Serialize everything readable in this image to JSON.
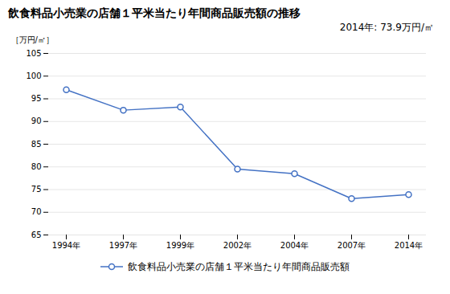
{
  "chart_data": {
    "type": "line",
    "title": "飲食料品小売業の店舗１平米当たり年間商品販売額の推移",
    "annotation": "2014年: 73.9万円/㎡",
    "ylabel": "［万円/㎡］",
    "categories": [
      "1994年",
      "1997年",
      "1999年",
      "2002年",
      "2004年",
      "2007年",
      "2014年"
    ],
    "series": [
      {
        "name": "飲食料品小売業の店舗１平米当たり年間商品販売額",
        "color": "#4472C4",
        "marker": "circle",
        "values": [
          97.0,
          92.5,
          93.2,
          79.5,
          78.5,
          73.0,
          73.9
        ]
      }
    ],
    "ylim": [
      65,
      105
    ],
    "yticks": [
      65,
      70,
      75,
      80,
      85,
      90,
      95,
      100,
      105
    ],
    "grid": true,
    "legend": "bottom"
  }
}
